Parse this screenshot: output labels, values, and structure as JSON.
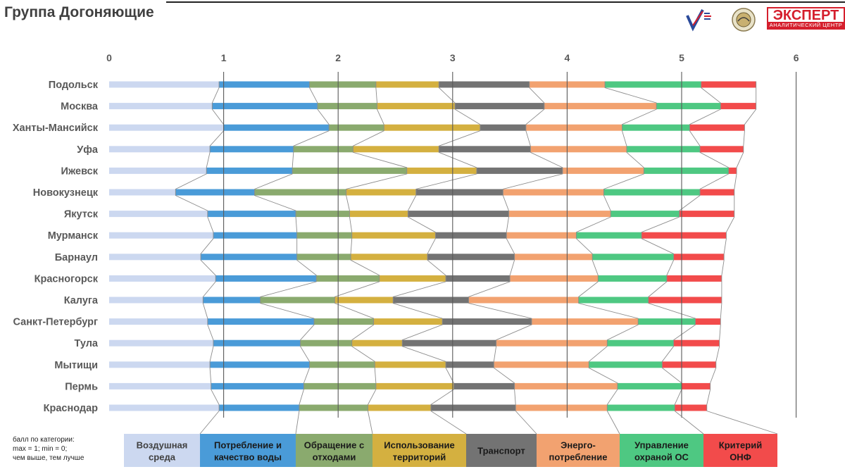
{
  "title": "Группа Догоняющие",
  "logos": {
    "expert_title": "ЭКСПЕРТ",
    "expert_subtitle": "АНАЛИТИЧЕСКИЙ ЦЕНТР"
  },
  "note": {
    "line1": "балл по категории:",
    "line2": "max = 1; min = 0;",
    "line3": "чем выше, тем лучше"
  },
  "chart_data": {
    "type": "bar",
    "orientation": "horizontal",
    "stacked": true,
    "title": "Группа Догоняющие",
    "xlim": [
      0,
      6
    ],
    "xticks": [
      "0",
      "1",
      "2",
      "3",
      "4",
      "5",
      "6"
    ],
    "grid": true,
    "legend": "bottom",
    "categories": [
      "Подольск",
      "Москва",
      "Ханты-Мансийск",
      "Уфа",
      "Ижевск",
      "Новокузнецк",
      "Якутск",
      "Мурманск",
      "Барнаул",
      "Красногорск",
      "Калуга",
      "Санкт-Петербург",
      "Тула",
      "Мытищи",
      "Пермь",
      "Краснодар"
    ],
    "series": [
      {
        "name": "Воздушная среда",
        "legend_lines": [
          "Воздушная",
          "среда"
        ],
        "color": "#ccd8f0",
        "values": [
          0.96,
          0.9,
          1.0,
          0.88,
          0.85,
          0.58,
          0.86,
          0.91,
          0.8,
          0.93,
          0.82,
          0.86,
          0.91,
          0.88,
          0.89,
          0.96
        ]
      },
      {
        "name": "Потребление и качество воды",
        "legend_lines": [
          "Потребление и",
          "качество воды"
        ],
        "color": "#4a9bd8",
        "values": [
          0.79,
          0.92,
          0.92,
          0.73,
          0.75,
          0.69,
          0.77,
          0.73,
          0.84,
          0.88,
          0.5,
          0.93,
          0.76,
          0.87,
          0.81,
          0.7
        ]
      },
      {
        "name": "Обращение с отходами",
        "legend_lines": [
          "Обращение с",
          "отходами"
        ],
        "color": "#8aaa6e",
        "values": [
          0.58,
          0.52,
          0.48,
          0.52,
          1.0,
          0.8,
          0.47,
          0.48,
          0.47,
          0.55,
          0.65,
          0.52,
          0.45,
          0.57,
          0.63,
          0.6
        ]
      },
      {
        "name": "Использование территорий",
        "legend_lines": [
          "Использование",
          "территорий"
        ],
        "color": "#d4b040",
        "values": [
          0.55,
          0.68,
          0.84,
          0.75,
          0.61,
          0.61,
          0.51,
          0.73,
          0.67,
          0.58,
          0.51,
          0.6,
          0.44,
          0.62,
          0.68,
          0.55
        ]
      },
      {
        "name": "Транспорт",
        "legend_lines": [
          "Транспорт"
        ],
        "color": "#737373",
        "values": [
          0.79,
          0.78,
          0.4,
          0.8,
          0.75,
          0.76,
          0.88,
          0.62,
          0.76,
          0.56,
          0.66,
          0.78,
          0.82,
          0.42,
          0.53,
          0.74
        ]
      },
      {
        "name": "Энерго-потребление",
        "legend_lines": [
          "Энерго-",
          "потребление"
        ],
        "color": "#f2a270",
        "values": [
          0.66,
          0.98,
          0.84,
          0.84,
          0.71,
          0.88,
          0.89,
          0.61,
          0.68,
          0.77,
          0.96,
          0.93,
          0.97,
          0.83,
          0.9,
          0.8
        ]
      },
      {
        "name": "Управление охраной ОС",
        "legend_lines": [
          "Управление",
          "охраной ОС"
        ],
        "color": "#4ec882",
        "values": [
          0.84,
          0.56,
          0.59,
          0.64,
          0.74,
          0.84,
          0.6,
          0.57,
          0.71,
          0.6,
          0.61,
          0.5,
          0.58,
          0.64,
          0.56,
          0.59
        ]
      },
      {
        "name": "Критерий ОНФ",
        "legend_lines": [
          "Критерий",
          "ОНФ"
        ],
        "color": "#f24b4b",
        "values": [
          0.48,
          0.31,
          0.48,
          0.38,
          0.07,
          0.3,
          0.48,
          0.74,
          0.44,
          0.48,
          0.64,
          0.22,
          0.4,
          0.47,
          0.25,
          0.28
        ]
      }
    ]
  }
}
